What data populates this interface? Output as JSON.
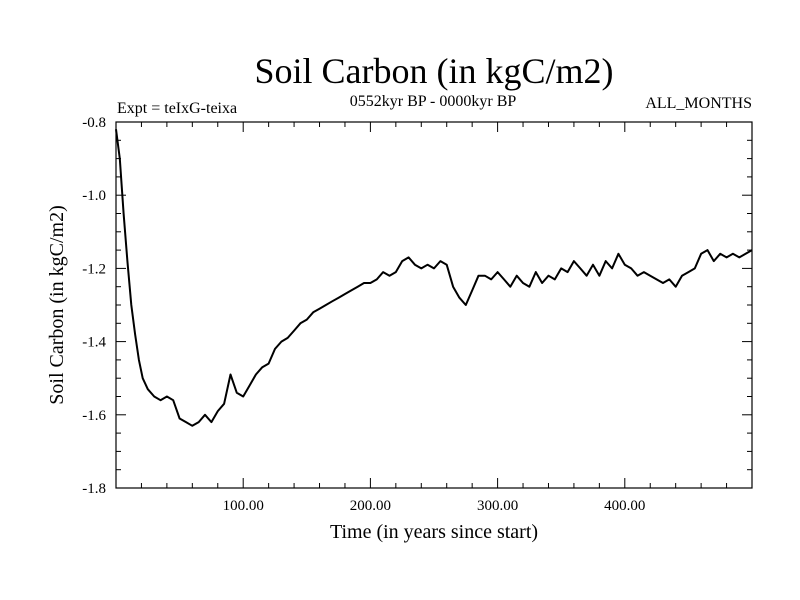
{
  "chart_data": {
    "type": "line",
    "title": "Soil Carbon (in kgC/m2)",
    "subtitle_left": "Expt = teIxG-teixa",
    "subtitle_center": "0552kyr BP - 0000kyr BP",
    "subtitle_right": "ALL_MONTHS",
    "xlabel": "Time (in years since start)",
    "ylabel": "Soil Carbon (in kgC/m2)",
    "xlim": [
      0,
      500
    ],
    "ylim": [
      -1.8,
      -0.8
    ],
    "x_ticks": [
      100,
      200,
      300,
      400
    ],
    "x_tick_labels": [
      "100.00",
      "200.00",
      "300.00",
      "400.00"
    ],
    "y_ticks": [
      -1.8,
      -1.6,
      -1.4,
      -1.2,
      -1.0,
      -0.8
    ],
    "y_tick_labels": [
      "-1.8",
      "-1.6",
      "-1.4",
      "-1.2",
      "-1.0",
      "-0.8"
    ],
    "grid": false,
    "series": [
      {
        "color": "#000000",
        "x": [
          0,
          3,
          6,
          9,
          12,
          15,
          18,
          21,
          25,
          30,
          35,
          40,
          45,
          50,
          55,
          60,
          65,
          70,
          75,
          80,
          85,
          90,
          95,
          100,
          105,
          110,
          115,
          120,
          125,
          130,
          135,
          140,
          145,
          150,
          155,
          160,
          165,
          170,
          175,
          180,
          185,
          190,
          195,
          200,
          205,
          210,
          215,
          220,
          225,
          230,
          235,
          240,
          245,
          250,
          255,
          260,
          265,
          270,
          275,
          280,
          285,
          290,
          295,
          300,
          305,
          310,
          315,
          320,
          325,
          330,
          335,
          340,
          345,
          350,
          355,
          360,
          365,
          370,
          375,
          380,
          385,
          390,
          395,
          400,
          405,
          410,
          415,
          420,
          425,
          430,
          435,
          440,
          445,
          450,
          455,
          460,
          465,
          470,
          475,
          480,
          485,
          490,
          495,
          500
        ],
        "y": [
          -0.82,
          -0.9,
          -1.05,
          -1.18,
          -1.3,
          -1.38,
          -1.45,
          -1.5,
          -1.53,
          -1.55,
          -1.56,
          -1.55,
          -1.56,
          -1.61,
          -1.62,
          -1.63,
          -1.62,
          -1.6,
          -1.62,
          -1.59,
          -1.57,
          -1.49,
          -1.54,
          -1.55,
          -1.52,
          -1.49,
          -1.47,
          -1.46,
          -1.42,
          -1.4,
          -1.39,
          -1.37,
          -1.35,
          -1.34,
          -1.32,
          -1.31,
          -1.3,
          -1.29,
          -1.28,
          -1.27,
          -1.26,
          -1.25,
          -1.24,
          -1.24,
          -1.23,
          -1.21,
          -1.22,
          -1.21,
          -1.18,
          -1.17,
          -1.19,
          -1.2,
          -1.19,
          -1.2,
          -1.18,
          -1.19,
          -1.25,
          -1.28,
          -1.3,
          -1.26,
          -1.22,
          -1.22,
          -1.23,
          -1.21,
          -1.23,
          -1.25,
          -1.22,
          -1.24,
          -1.25,
          -1.21,
          -1.24,
          -1.22,
          -1.23,
          -1.2,
          -1.21,
          -1.18,
          -1.2,
          -1.22,
          -1.19,
          -1.22,
          -1.18,
          -1.2,
          -1.16,
          -1.19,
          -1.2,
          -1.22,
          -1.21,
          -1.22,
          -1.23,
          -1.24,
          -1.23,
          -1.25,
          -1.22,
          -1.21,
          -1.2,
          -1.16,
          -1.15,
          -1.18,
          -1.16,
          -1.17,
          -1.16,
          -1.17,
          -1.16,
          -1.15
        ]
      }
    ]
  }
}
